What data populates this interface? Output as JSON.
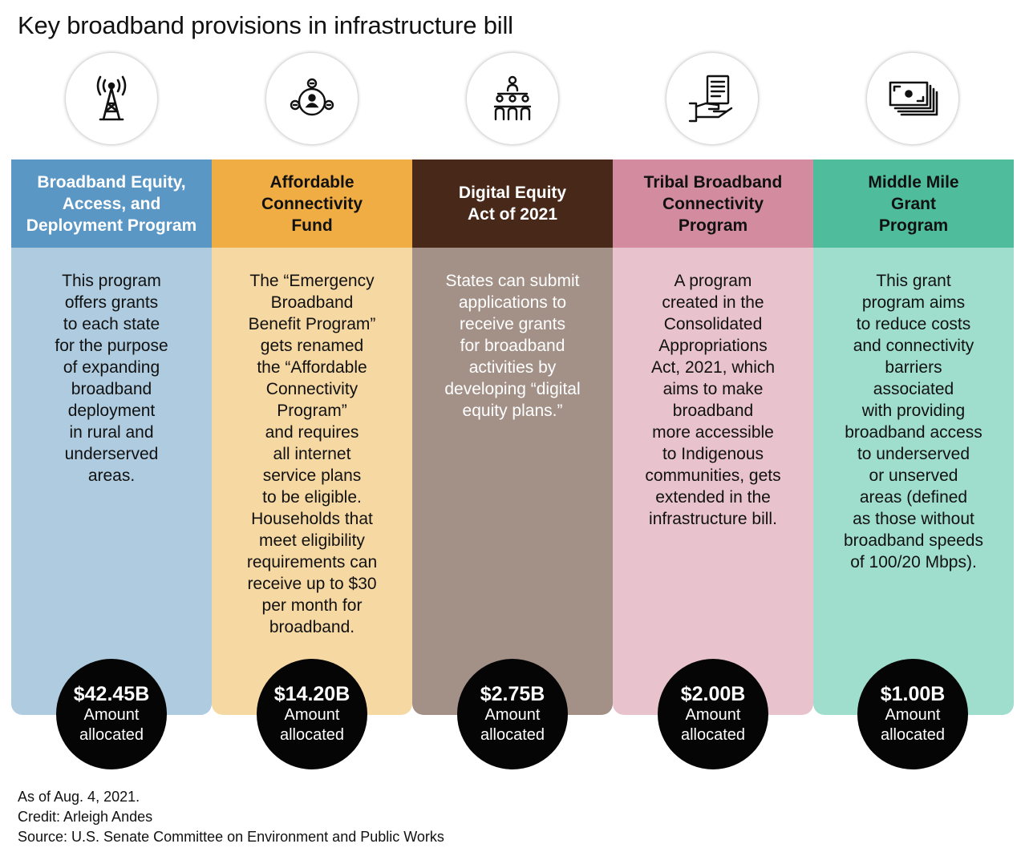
{
  "title": "Key broadband provisions in infrastructure bill",
  "colors": {
    "col1_header": "#5b97c5",
    "col1_body": "#aecbdf",
    "col2_header": "#f0ad43",
    "col2_body": "#f6d8a3",
    "col3_header": "#472819",
    "col3_body": "#a39188",
    "col4_header": "#d38c9f",
    "col4_body": "#e8c3cd",
    "col5_header": "#4fbc9c",
    "col5_body": "#9fdecd"
  },
  "programs": [
    {
      "icon": "radio-tower-icon",
      "name": "Broadband Equity,\nAccess, and\nDeployment Program",
      "description": "This program\noffers grants\nto each state\nfor the purpose\nof expanding\nbroadband\ndeployment\nin rural and\nunderserved\nareas.",
      "amount": "$42.45B",
      "amount_label": "Amount\nallocated"
    },
    {
      "icon": "network-people-icon",
      "name": "Affordable\nConnectivity\nFund",
      "description": "The “Emergency\nBroadband\nBenefit Program”\ngets renamed\nthe “Affordable\nConnectivity\nProgram”\nand requires\nall internet\nservice plans\nto be eligible.\nHouseholds that\nmeet eligibility\nrequirements can\nreceive up to $30\nper month for\nbroadband.",
      "amount": "$14.20B",
      "amount_label": "Amount\nallocated"
    },
    {
      "icon": "org-chart-icon",
      "name": "Digital Equity\nAct of 2021",
      "description": "States can submit\napplications to\nreceive grants\nfor broadband\nactivities by\ndeveloping “digital\nequity plans.”",
      "amount": "$2.75B",
      "amount_label": "Amount\nallocated"
    },
    {
      "icon": "hand-document-icon",
      "name": "Tribal Broadband\nConnectivity\nProgram",
      "description": "A program\ncreated in the\nConsolidated\nAppropriations\nAct, 2021, which\naims to make\nbroadband\nmore accessible\nto Indigenous\ncommunities, gets\nextended in the\ninfrastructure bill.",
      "amount": "$2.00B",
      "amount_label": "Amount\nallocated"
    },
    {
      "icon": "cash-stack-icon",
      "name": "Middle Mile\nGrant\nProgram",
      "description": "This grant\nprogram aims\nto reduce costs\nand connectivity\nbarriers\nassociated\nwith providing\nbroadband access\nto underserved\nor unserved\nareas  (defined\nas those without\nbroadband speeds\nof 100/20 Mbps).",
      "amount": "$1.00B",
      "amount_label": "Amount\nallocated"
    }
  ],
  "footer": {
    "date": "As of Aug. 4, 2021.",
    "credit": "Credit: Arleigh Andes",
    "source": "Source: U.S. Senate Committee on Environment and Public Works"
  }
}
